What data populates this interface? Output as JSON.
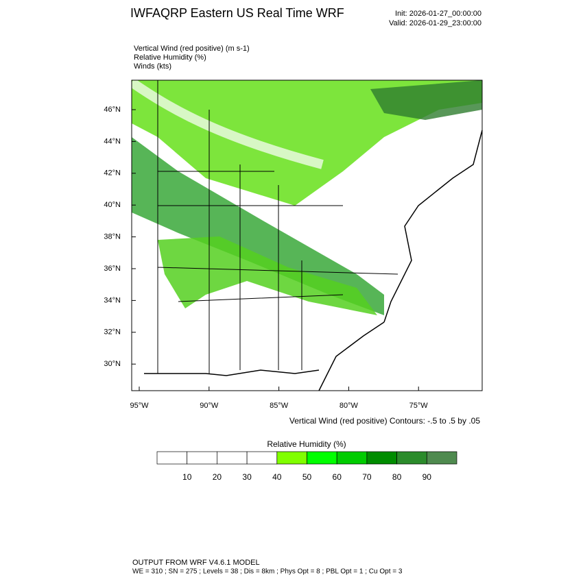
{
  "header": {
    "title": "IWFAQRP Eastern US Real Time WRF",
    "init": "Init: 2026-01-27_00:00:00",
    "valid": "Valid: 2026-01-29_23:00:00"
  },
  "fields": [
    "Vertical Wind (red positive)   (m s-1)",
    "Relative Humidity   (%)",
    "Winds   (kts)"
  ],
  "map": {
    "lat_labels": [
      "46°N",
      "44°N",
      "42°N",
      "40°N",
      "38°N",
      "36°N",
      "34°N",
      "32°N",
      "30°N"
    ],
    "lon_labels": [
      "95°W",
      "90°W",
      "85°W",
      "80°W",
      "75°W"
    ],
    "contour_note": "Vertical Wind (red positive) Contours: -.5 to .5 by .05"
  },
  "colorbar": {
    "title": "Relative Humidity  (%)",
    "colors": [
      "#ffffff",
      "#ffffff",
      "#ffffff",
      "#ffffff",
      "#80ff00",
      "#00ff00",
      "#00cc00",
      "#008c00",
      "#2b8b2b",
      "#4f8a4f"
    ],
    "labels": [
      "10",
      "20",
      "30",
      "40",
      "50",
      "60",
      "70",
      "80",
      "90"
    ]
  },
  "footer": {
    "line1": "OUTPUT FROM WRF V4.6.1 MODEL",
    "line2": "WE = 310 ; SN = 275 ; Levels = 38 ; Dis = 8km ; Phys Opt = 8 ; PBL Opt = 1 ; Cu Opt = 3"
  }
}
